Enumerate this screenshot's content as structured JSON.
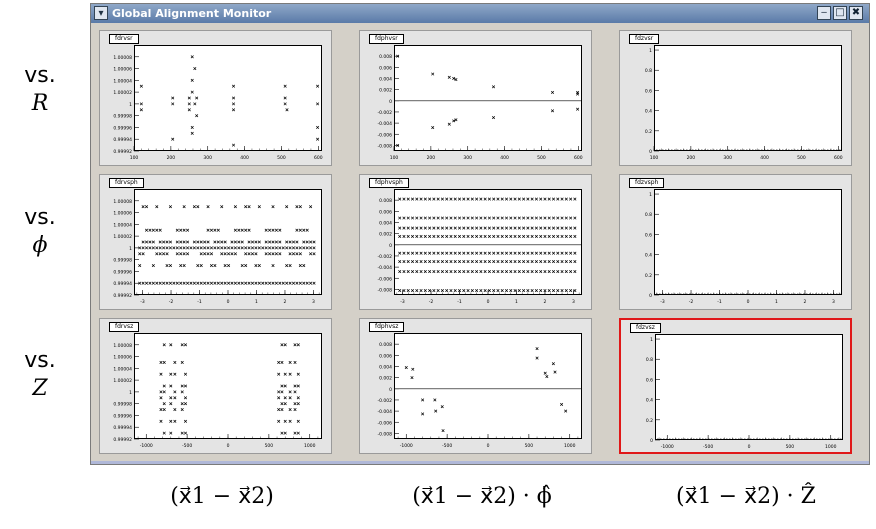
{
  "window": {
    "title": "Global Alignment Monitor",
    "buttons": {
      "minimize": "‒",
      "maximize": "□",
      "close": "✖"
    }
  },
  "row_labels": [
    {
      "prefix": "vs.",
      "var": "R"
    },
    {
      "prefix": "vs.",
      "var": "ϕ"
    },
    {
      "prefix": "vs.",
      "var": "Z"
    }
  ],
  "col_labels": [
    "(x⃗1 − x⃗2)",
    "(x⃗1 − x⃗2) · ϕ̂",
    "(x⃗1 − x⃗2) · Ẑ"
  ],
  "chart_data": [
    {
      "name": "fdrvsr",
      "type": "scatter",
      "xlim": [
        100,
        610
      ],
      "ylim": [
        0.99992,
        1.0001
      ],
      "xticks": [
        100,
        200,
        300,
        400,
        500,
        600
      ],
      "yticks": [
        "0.99992",
        "0.99994",
        "0.99996",
        "0.99998",
        "1",
        "1.00002",
        "1.00004",
        "1.00006",
        "1.00008"
      ],
      "points": [
        [
          120,
          1.00003
        ],
        [
          120,
          1.0
        ],
        [
          120,
          0.99999
        ],
        [
          205,
          1.00001
        ],
        [
          205,
          1.0
        ],
        [
          205,
          0.99994
        ],
        [
          250,
          1.0
        ],
        [
          250,
          0.99999
        ],
        [
          250,
          1.00001
        ],
        [
          258,
          1.00008
        ],
        [
          258,
          1.00004
        ],
        [
          258,
          1.00002
        ],
        [
          258,
          0.99995
        ],
        [
          258,
          0.99996
        ],
        [
          265,
          1.00006
        ],
        [
          265,
          1.0
        ],
        [
          270,
          0.99998
        ],
        [
          270,
          1.00001
        ],
        [
          370,
          1.00003
        ],
        [
          370,
          1.00001
        ],
        [
          370,
          1.0
        ],
        [
          370,
          0.99999
        ],
        [
          370,
          0.99993
        ],
        [
          510,
          1.00003
        ],
        [
          510,
          1.0
        ],
        [
          510,
          1.00001
        ],
        [
          515,
          0.99999
        ],
        [
          598,
          1.00003
        ],
        [
          598,
          1.0
        ],
        [
          598,
          0.99996
        ],
        [
          598,
          0.99994
        ]
      ]
    },
    {
      "name": "fdphvsr",
      "type": "scatter",
      "xlim": [
        100,
        610
      ],
      "ylim": [
        -0.009,
        0.01
      ],
      "xticks": [
        100,
        200,
        300,
        400,
        500,
        600
      ],
      "yticks": [
        "-0.008",
        "-0.006",
        "-0.004",
        "-0.002",
        "0",
        "0.002",
        "0.004",
        "0.006",
        "0.008"
      ],
      "hline": 0,
      "points": [
        [
          110,
          0.008
        ],
        [
          110,
          -0.008
        ],
        [
          205,
          0.0048
        ],
        [
          205,
          -0.0048
        ],
        [
          250,
          0.0042
        ],
        [
          250,
          -0.0042
        ],
        [
          262,
          0.004
        ],
        [
          262,
          -0.0036
        ],
        [
          268,
          0.0038
        ],
        [
          268,
          -0.0034
        ],
        [
          370,
          0.0025
        ],
        [
          370,
          -0.003
        ],
        [
          530,
          0.0015
        ],
        [
          530,
          -0.0018
        ],
        [
          598,
          0.0015
        ],
        [
          598,
          -0.0015
        ],
        [
          598,
          0.0012
        ]
      ]
    },
    {
      "name": "fdzvsr",
      "type": "scatter",
      "xlim": [
        100,
        610
      ],
      "ylim": [
        0,
        1.05
      ],
      "xticks": [
        100,
        200,
        300,
        400,
        500,
        600
      ],
      "yticks": [
        "0",
        "0.2",
        "0.4",
        "0.6",
        "0.8",
        "1"
      ],
      "points": []
    },
    {
      "name": "fdrvsph",
      "type": "scatter",
      "xlim": [
        -3.3,
        3.3
      ],
      "ylim": [
        0.99992,
        1.0001
      ],
      "xticks": [
        -3,
        -2,
        -1,
        0,
        1,
        2,
        3
      ],
      "yticks": [
        "0.99992",
        "0.99994",
        "0.99996",
        "0.99998",
        "1",
        "1.00002",
        "1.00004",
        "1.00006",
        "1.00008"
      ],
      "points": []
    },
    {
      "name": "fdphvsph",
      "type": "scatter",
      "xlim": [
        -3.3,
        3.3
      ],
      "ylim": [
        -0.009,
        0.01
      ],
      "xticks": [
        -3,
        -2,
        -1,
        0,
        1,
        2,
        3
      ],
      "yticks": [
        "-0.008",
        "-0.006",
        "-0.004",
        "-0.002",
        "0",
        "0.002",
        "0.004",
        "0.006",
        "0.008"
      ],
      "hline": 0,
      "rows": [
        0.0082,
        0.0048,
        0.003,
        0.0015,
        -0.0015,
        -0.003,
        -0.0048,
        -0.0082
      ],
      "points": []
    },
    {
      "name": "fdzvsph",
      "type": "scatter",
      "xlim": [
        -3.3,
        3.3
      ],
      "ylim": [
        0,
        1.05
      ],
      "xticks": [
        -3,
        -2,
        -1,
        0,
        1,
        2,
        3
      ],
      "yticks": [
        "0",
        "0.2",
        "0.4",
        "0.6",
        "0.8",
        "1"
      ],
      "points": []
    },
    {
      "name": "fdrvsz",
      "type": "scatter",
      "xlim": [
        -1150,
        1150
      ],
      "ylim": [
        0.99992,
        1.0001
      ],
      "xticks": [
        -1000,
        -500,
        0,
        500,
        1000
      ],
      "yticks": [
        "0.99992",
        "0.99994",
        "0.99996",
        "0.99998",
        "1",
        "1.00002",
        "1.00004",
        "1.00006",
        "1.00008"
      ],
      "points": []
    },
    {
      "name": "fdphvsz",
      "type": "scatter",
      "xlim": [
        -1150,
        1150
      ],
      "ylim": [
        -0.009,
        0.01
      ],
      "xticks": [
        -1000,
        -500,
        0,
        500,
        1000
      ],
      "yticks": [
        "-0.008",
        "-0.006",
        "-0.004",
        "-0.002",
        "0",
        "0.002",
        "0.004",
        "0.006",
        "0.008"
      ],
      "hline": 0,
      "points": [
        [
          -1000,
          0.0038
        ],
        [
          -920,
          0.0035
        ],
        [
          -930,
          0.002
        ],
        [
          -800,
          -0.002
        ],
        [
          -800,
          -0.0045
        ],
        [
          -650,
          -0.002
        ],
        [
          -640,
          -0.004
        ],
        [
          -560,
          -0.0032
        ],
        [
          -550,
          -0.0075
        ],
        [
          600,
          0.0072
        ],
        [
          600,
          0.0055
        ],
        [
          700,
          0.0028
        ],
        [
          720,
          0.0022
        ],
        [
          800,
          0.0045
        ],
        [
          820,
          0.003
        ],
        [
          900,
          -0.0028
        ],
        [
          950,
          -0.004
        ]
      ]
    },
    {
      "name": "fdzvsz",
      "type": "scatter",
      "xlim": [
        -1150,
        1150
      ],
      "ylim": [
        0,
        1.05
      ],
      "xticks": [
        -1000,
        -500,
        0,
        500,
        1000
      ],
      "yticks": [
        "0",
        "0.2",
        "0.4",
        "0.6",
        "0.8",
        "1"
      ],
      "points": [],
      "selected": true
    }
  ]
}
